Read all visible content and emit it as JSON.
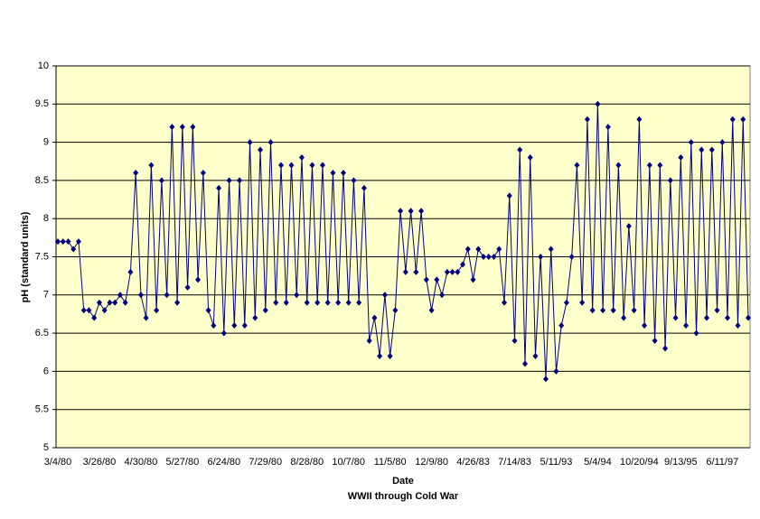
{
  "chart_data": {
    "type": "line",
    "x_label": "Date",
    "subtitle": "WWII through Cold War",
    "y_label": "pH (standard units)",
    "categories": [
      "3/4/80",
      null,
      null,
      null,
      null,
      null,
      null,
      null,
      "3/26/80",
      null,
      null,
      null,
      null,
      null,
      null,
      null,
      "4/30/80",
      null,
      null,
      null,
      null,
      null,
      null,
      null,
      "5/27/80",
      null,
      null,
      null,
      null,
      null,
      null,
      null,
      "6/24/80",
      null,
      null,
      null,
      null,
      null,
      null,
      null,
      "7/29/80",
      null,
      null,
      null,
      null,
      null,
      null,
      null,
      "8/28/80",
      null,
      null,
      null,
      null,
      null,
      null,
      null,
      "10/7/80",
      null,
      null,
      null,
      null,
      null,
      null,
      null,
      "11/5/80",
      null,
      null,
      null,
      null,
      null,
      null,
      null,
      "12/9/80",
      null,
      null,
      null,
      null,
      null,
      null,
      null,
      "4/26/83",
      null,
      null,
      null,
      null,
      null,
      null,
      null,
      "7/14/83",
      null,
      null,
      null,
      null,
      null,
      null,
      null,
      "5/11/93",
      null,
      null,
      null,
      null,
      null,
      null,
      null,
      "5/4/94",
      null,
      null,
      null,
      null,
      null,
      null,
      null,
      "10/20/94",
      null,
      null,
      null,
      null,
      null,
      null,
      null,
      "9/13/95",
      null,
      null,
      null,
      null,
      null,
      null,
      null,
      "6/11/97",
      null,
      null,
      null,
      null,
      null
    ],
    "series": [
      {
        "color": "#000080",
        "values": [
          7.7,
          7.7,
          7.7,
          7.6,
          7.7,
          6.8,
          6.8,
          6.7,
          6.9,
          6.8,
          6.9,
          6.9,
          7.0,
          6.9,
          7.3,
          8.6,
          7.0,
          6.7,
          8.7,
          6.8,
          8.5,
          7.0,
          9.2,
          6.9,
          9.2,
          7.1,
          9.2,
          7.2,
          8.6,
          6.8,
          6.6,
          8.4,
          6.5,
          8.5,
          6.6,
          8.5,
          6.6,
          9.0,
          6.7,
          8.9,
          6.8,
          9.0,
          6.9,
          8.7,
          6.9,
          8.7,
          7.0,
          8.8,
          6.9,
          8.7,
          6.9,
          8.7,
          6.9,
          8.6,
          6.9,
          8.6,
          6.9,
          8.5,
          6.9,
          8.4,
          6.4,
          6.7,
          6.2,
          7.0,
          6.2,
          6.8,
          8.1,
          7.3,
          8.1,
          7.3,
          8.1,
          7.2,
          6.8,
          7.2,
          7.0,
          7.3,
          7.3,
          7.3,
          7.4,
          7.6,
          7.2,
          7.6,
          7.5,
          7.5,
          7.5,
          7.6,
          6.9,
          8.3,
          6.4,
          8.9,
          6.1,
          8.8,
          6.2,
          7.5,
          5.9,
          7.6,
          6.0,
          6.6,
          6.9,
          7.5,
          8.7,
          6.9,
          9.3,
          6.8,
          9.5,
          6.8,
          9.2,
          6.8,
          8.7,
          6.7,
          7.9,
          6.8,
          9.3,
          6.6,
          8.7,
          6.4,
          8.7,
          6.3,
          8.5,
          6.7,
          8.8,
          6.6,
          9.0,
          6.5,
          8.9,
          6.7,
          8.9,
          6.8,
          9.0,
          6.7,
          9.3,
          6.6,
          9.3,
          6.7
        ]
      }
    ],
    "ylim": [
      5,
      10
    ],
    "yticks": [
      5,
      5.5,
      6,
      6.5,
      7,
      7.5,
      8,
      8.5,
      9,
      9.5,
      10
    ],
    "grid": true,
    "plot_background": "#ffffcc"
  }
}
